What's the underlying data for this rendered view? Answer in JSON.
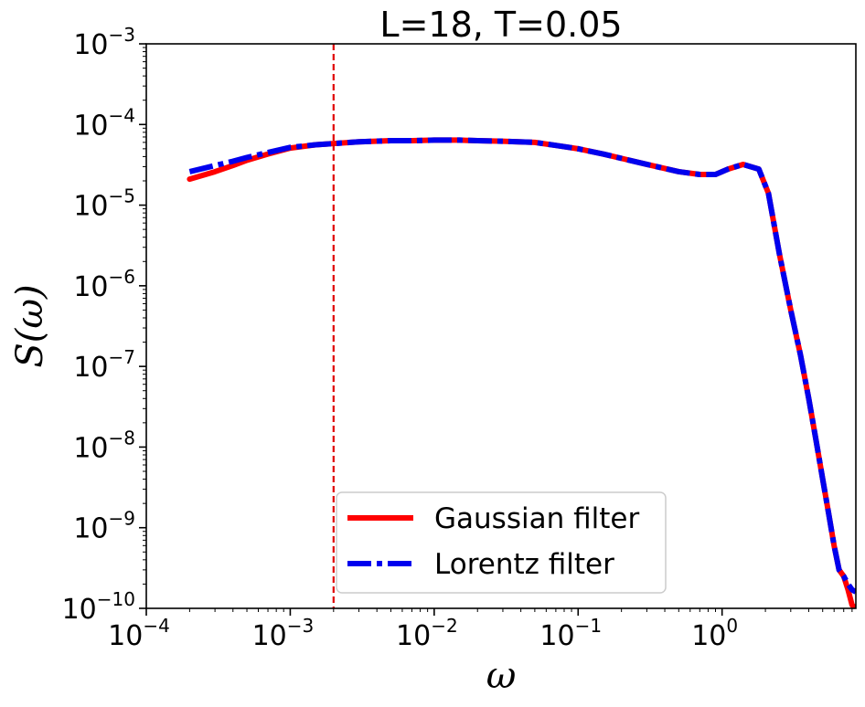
{
  "chart_data": {
    "type": "line",
    "title": "L=18, T=0.05",
    "xlabel": "ω",
    "ylabel": "S(ω)",
    "xscale": "log",
    "yscale": "log",
    "xlim": [
      0.0001,
      8.5
    ],
    "ylim": [
      1e-10,
      0.001
    ],
    "grid": false,
    "legend_position": "bottom-center",
    "xticks": [
      {
        "base": "10",
        "exp": "−4",
        "value": 0.0001
      },
      {
        "base": "10",
        "exp": "−3",
        "value": 0.001
      },
      {
        "base": "10",
        "exp": "−2",
        "value": 0.01
      },
      {
        "base": "10",
        "exp": "−1",
        "value": 0.1
      },
      {
        "base": "10",
        "exp": "0",
        "value": 1
      }
    ],
    "yticks": [
      {
        "base": "10",
        "exp": "−3",
        "value": 0.001
      },
      {
        "base": "10",
        "exp": "−4",
        "value": 0.0001
      },
      {
        "base": "10",
        "exp": "−5",
        "value": 1e-05
      },
      {
        "base": "10",
        "exp": "−6",
        "value": 1e-06
      },
      {
        "base": "10",
        "exp": "−7",
        "value": 1e-07
      },
      {
        "base": "10",
        "exp": "−8",
        "value": 1e-08
      },
      {
        "base": "10",
        "exp": "−9",
        "value": 1e-09
      },
      {
        "base": "10",
        "exp": "−10",
        "value": 1e-10
      }
    ],
    "vline": {
      "x": 0.002,
      "color": "#e00000",
      "style": "dashed"
    },
    "series": [
      {
        "name": "Gaussian filter",
        "color": "#ff0000",
        "style": "solid",
        "x": [
          0.0002,
          0.0003,
          0.0004,
          0.0005,
          0.0007,
          0.001,
          0.0015,
          0.002,
          0.003,
          0.005,
          0.007,
          0.01,
          0.015,
          0.02,
          0.03,
          0.05,
          0.07,
          0.1,
          0.15,
          0.2,
          0.3,
          0.5,
          0.7,
          0.9,
          1.1,
          1.4,
          1.8,
          2.1,
          2.5,
          3,
          3.5,
          4,
          4.5,
          5,
          5.5,
          6,
          6.5,
          7,
          7.5,
          8,
          8.5
        ],
        "y": [
          2.1e-05,
          2.6e-05,
          3.1e-05,
          3.6e-05,
          4.3e-05,
          5.1e-05,
          5.6e-05,
          5.8e-05,
          6.1e-05,
          6.3e-05,
          6.3e-05,
          6.4e-05,
          6.4e-05,
          6.3e-05,
          6.2e-05,
          6e-05,
          5.5e-05,
          5e-05,
          4.3e-05,
          3.8e-05,
          3.2e-05,
          2.6e-05,
          2.4e-05,
          2.4e-05,
          2.8e-05,
          3.2e-05,
          2.8e-05,
          1.4e-05,
          2.5e-06,
          5e-07,
          1.4e-07,
          4e-08,
          1.2e-08,
          4e-09,
          1.5e-09,
          6e-10,
          3e-10,
          2.5e-10,
          1.7e-10,
          1.1e-10,
          1e-10
        ]
      },
      {
        "name": "Lorentz filter",
        "color": "#0000ee",
        "style": "dashdot",
        "x": [
          0.0002,
          0.0003,
          0.0004,
          0.0005,
          0.0007,
          0.001,
          0.0015,
          0.002,
          0.003,
          0.005,
          0.007,
          0.01,
          0.015,
          0.02,
          0.03,
          0.05,
          0.07,
          0.1,
          0.15,
          0.2,
          0.3,
          0.5,
          0.7,
          0.9,
          1.1,
          1.4,
          1.8,
          2.1,
          2.5,
          3,
          3.5,
          4,
          4.5,
          5,
          5.5,
          6,
          6.5,
          7,
          7.5,
          8,
          8.5
        ],
        "y": [
          2.6e-05,
          3.1e-05,
          3.5e-05,
          3.9e-05,
          4.5e-05,
          5.2e-05,
          5.6e-05,
          5.8e-05,
          6.1e-05,
          6.3e-05,
          6.3e-05,
          6.4e-05,
          6.4e-05,
          6.3e-05,
          6.2e-05,
          6e-05,
          5.5e-05,
          5e-05,
          4.3e-05,
          3.8e-05,
          3.2e-05,
          2.6e-05,
          2.4e-05,
          2.4e-05,
          2.8e-05,
          3.2e-05,
          2.8e-05,
          1.4e-05,
          2.5e-06,
          5e-07,
          1.4e-07,
          4e-08,
          1.2e-08,
          4e-09,
          1.5e-09,
          6e-10,
          3e-10,
          2.5e-10,
          2e-10,
          1.7e-10,
          1.6e-10
        ]
      }
    ]
  }
}
